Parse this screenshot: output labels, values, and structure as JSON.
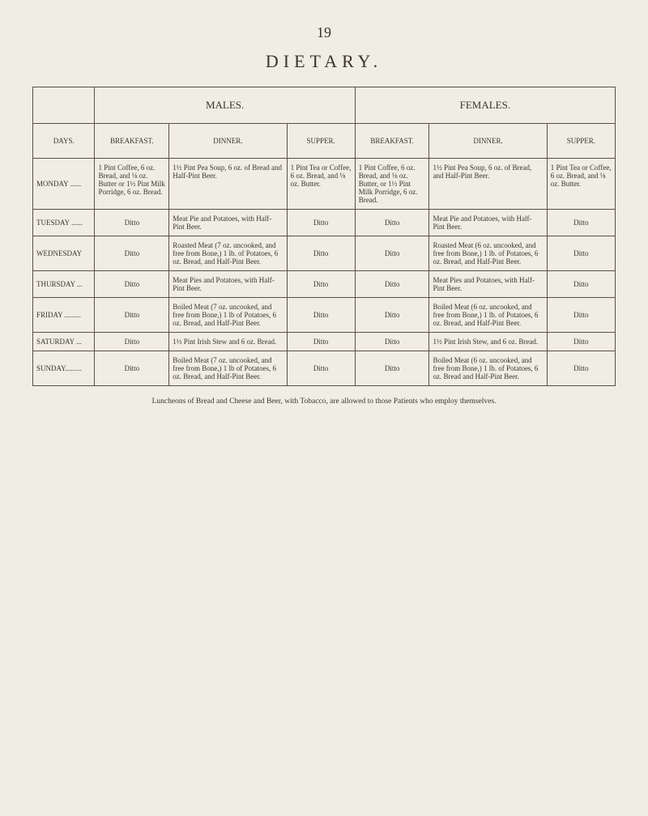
{
  "page_number": "19",
  "title": "DIETARY.",
  "genders": {
    "males": "MALES.",
    "females": "FEMALES."
  },
  "columns": {
    "days": "DAYS.",
    "breakfast": "BREAKFAST.",
    "dinner": "DINNER.",
    "supper": "SUPPER."
  },
  "rows": [
    {
      "day": "MONDAY ......",
      "m_bf": "1 Pint Coffee, 6 oz. Bread, and ⅛ oz. Butter or 1½ Pint Milk Porridge, 6 oz. Bread.",
      "m_din": "1½ Pint Pea Soup, 6 oz. of Bread and Half-Pint Beer.",
      "m_sup": "1 Pint Tea or Coffee, 6 oz. Bread, and ⅛ oz. Butter.",
      "f_bf": "1 Pint Coffee, 6 oz. Bread, and ⅛ oz. Butter, or 1½ Pint Milk Porridge, 6 oz. Bread.",
      "f_din": "1½ Pint Pea Soup, 6 oz. of Bread, and Half-Pint Beer.",
      "f_sup": "1 Pint Tea or Coffee, 6 oz. Bread, and ⅛ oz. Butter."
    },
    {
      "day": "TUESDAY ......",
      "m_bf": "Ditto",
      "m_din": "Meat Pie and Potatoes, with Half-Pint Beer.",
      "m_sup": "Ditto",
      "f_bf": "Ditto",
      "f_din": "Meat Pie and Potatoes, with Half-Pint Beer.",
      "f_sup": "Ditto"
    },
    {
      "day": "WEDNESDAY",
      "m_bf": "Ditto",
      "m_din": "Roasted Meat (7 oz. uncooked, and free from Bone,) 1 lb. of Potatoes, 6 oz. Bread, and Half-Pint Beer.",
      "m_sup": "Ditto",
      "f_bf": "Ditto",
      "f_din": "Roasted Meat (6 oz. uncooked, and free from Bone,) 1 lb. of Potatoes, 6 oz. Bread, and Half-Pint Beer.",
      "f_sup": "Ditto"
    },
    {
      "day": "THURSDAY ...",
      "m_bf": "Ditto",
      "m_din": "Meat Pies and Potatoes, with Half-Pint Beer.",
      "m_sup": "Ditto",
      "f_bf": "Ditto",
      "f_din": "Meat Pies and Potatoes, with Half-Pint Beer.",
      "f_sup": "Ditto"
    },
    {
      "day": "FRIDAY .........",
      "m_bf": "Ditto",
      "m_din": "Boiled Meat (7 oz. uncooked, and free from Bone,) 1 lb of Potatoes, 6 oz. Bread, and Half-Pint Beer.",
      "m_sup": "Ditto",
      "f_bf": "Ditto",
      "f_din": "Boiled Meat (6 oz. uncooked, and free from Bone,) 1 lb. of Potatoes, 6 oz. Bread, and Half-Pint Beer.",
      "f_sup": "Ditto"
    },
    {
      "day": "SATURDAY ...",
      "m_bf": "Ditto",
      "m_din": "1½ Pint Irish Stew and 6 oz. Bread.",
      "m_sup": "Ditto",
      "f_bf": "Ditto",
      "f_din": "1½ Pint Irish Stew, and 6 oz. Bread.",
      "f_sup": "Ditto"
    },
    {
      "day": "SUNDAY.........",
      "m_bf": "Ditto",
      "m_din": "Boiled Meat (7 oz. uncooked, and free from Bone,) 1 lb of Potatoes, 6 oz. Bread, and Half-Pint Beer.",
      "m_sup": "Ditto",
      "f_bf": "Ditto",
      "f_din": "Boiled Meat (6 oz. uncooked, and free from Bone,) 1 lb. of Potatoes, 6 oz. Bread and Half-Pint Beer.",
      "f_sup": "Ditto"
    }
  ],
  "footnote": "Luncheons of Bread and Cheese and Beer, with Tobacco, are allowed to those Patients who employ themselves."
}
